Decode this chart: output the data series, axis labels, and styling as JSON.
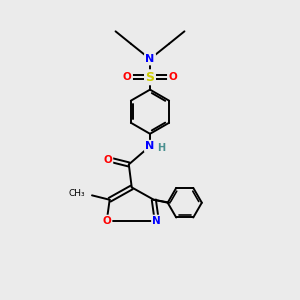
{
  "bg_color": "#ebebeb",
  "atom_colors": {
    "C": "#000000",
    "N": "#0000ff",
    "O": "#ff0000",
    "S": "#cccc00",
    "H": "#4a9090"
  },
  "bond_color": "#000000",
  "figsize": [
    3.0,
    3.0
  ],
  "dpi": 100
}
